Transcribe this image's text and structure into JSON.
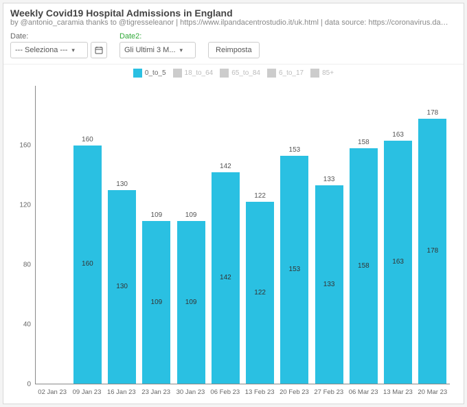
{
  "header": {
    "title": "Weekly Covid19 Hospital Admissions in England",
    "subtitle": "by @antonio_caramia thanks to @tigresseleanor | https://www.ilpandacentrostudio.it/uk.html | data source: https://coronavirus.data.gov.uk/details/downl..."
  },
  "controls": {
    "date_label": "Date:",
    "date_placeholder": "--- Seleziona ---",
    "date2_label": "Date2:",
    "date2_value": "Gli Ultimi 3 M...",
    "reset_label": "Reimposta"
  },
  "legend": {
    "items": [
      {
        "label": "0_to_5",
        "color": "#2ac0e2",
        "active": true
      },
      {
        "label": "18_to_64",
        "color": "#cccccc",
        "active": false
      },
      {
        "label": "65_to_84",
        "color": "#cccccc",
        "active": false
      },
      {
        "label": "6_to_17",
        "color": "#cccccc",
        "active": false
      },
      {
        "label": "85+",
        "color": "#cccccc",
        "active": false
      }
    ]
  },
  "chart": {
    "type": "bar",
    "bar_color": "#2ac0e2",
    "background_color": "#ffffff",
    "ylim_max": 200,
    "yticks": [
      0,
      40,
      80,
      120,
      160
    ],
    "categories": [
      "02 Jan 23",
      "09 Jan 23",
      "16 Jan 23",
      "23 Jan 23",
      "30 Jan 23",
      "06 Feb 23",
      "13 Feb 23",
      "20 Feb 23",
      "27 Feb 23",
      "06 Mar 23",
      "13 Mar 23",
      "20 Mar 23"
    ],
    "values": [
      null,
      160,
      130,
      109,
      109,
      142,
      122,
      153,
      133,
      158,
      163,
      178
    ],
    "label_fontsize": 10
  }
}
